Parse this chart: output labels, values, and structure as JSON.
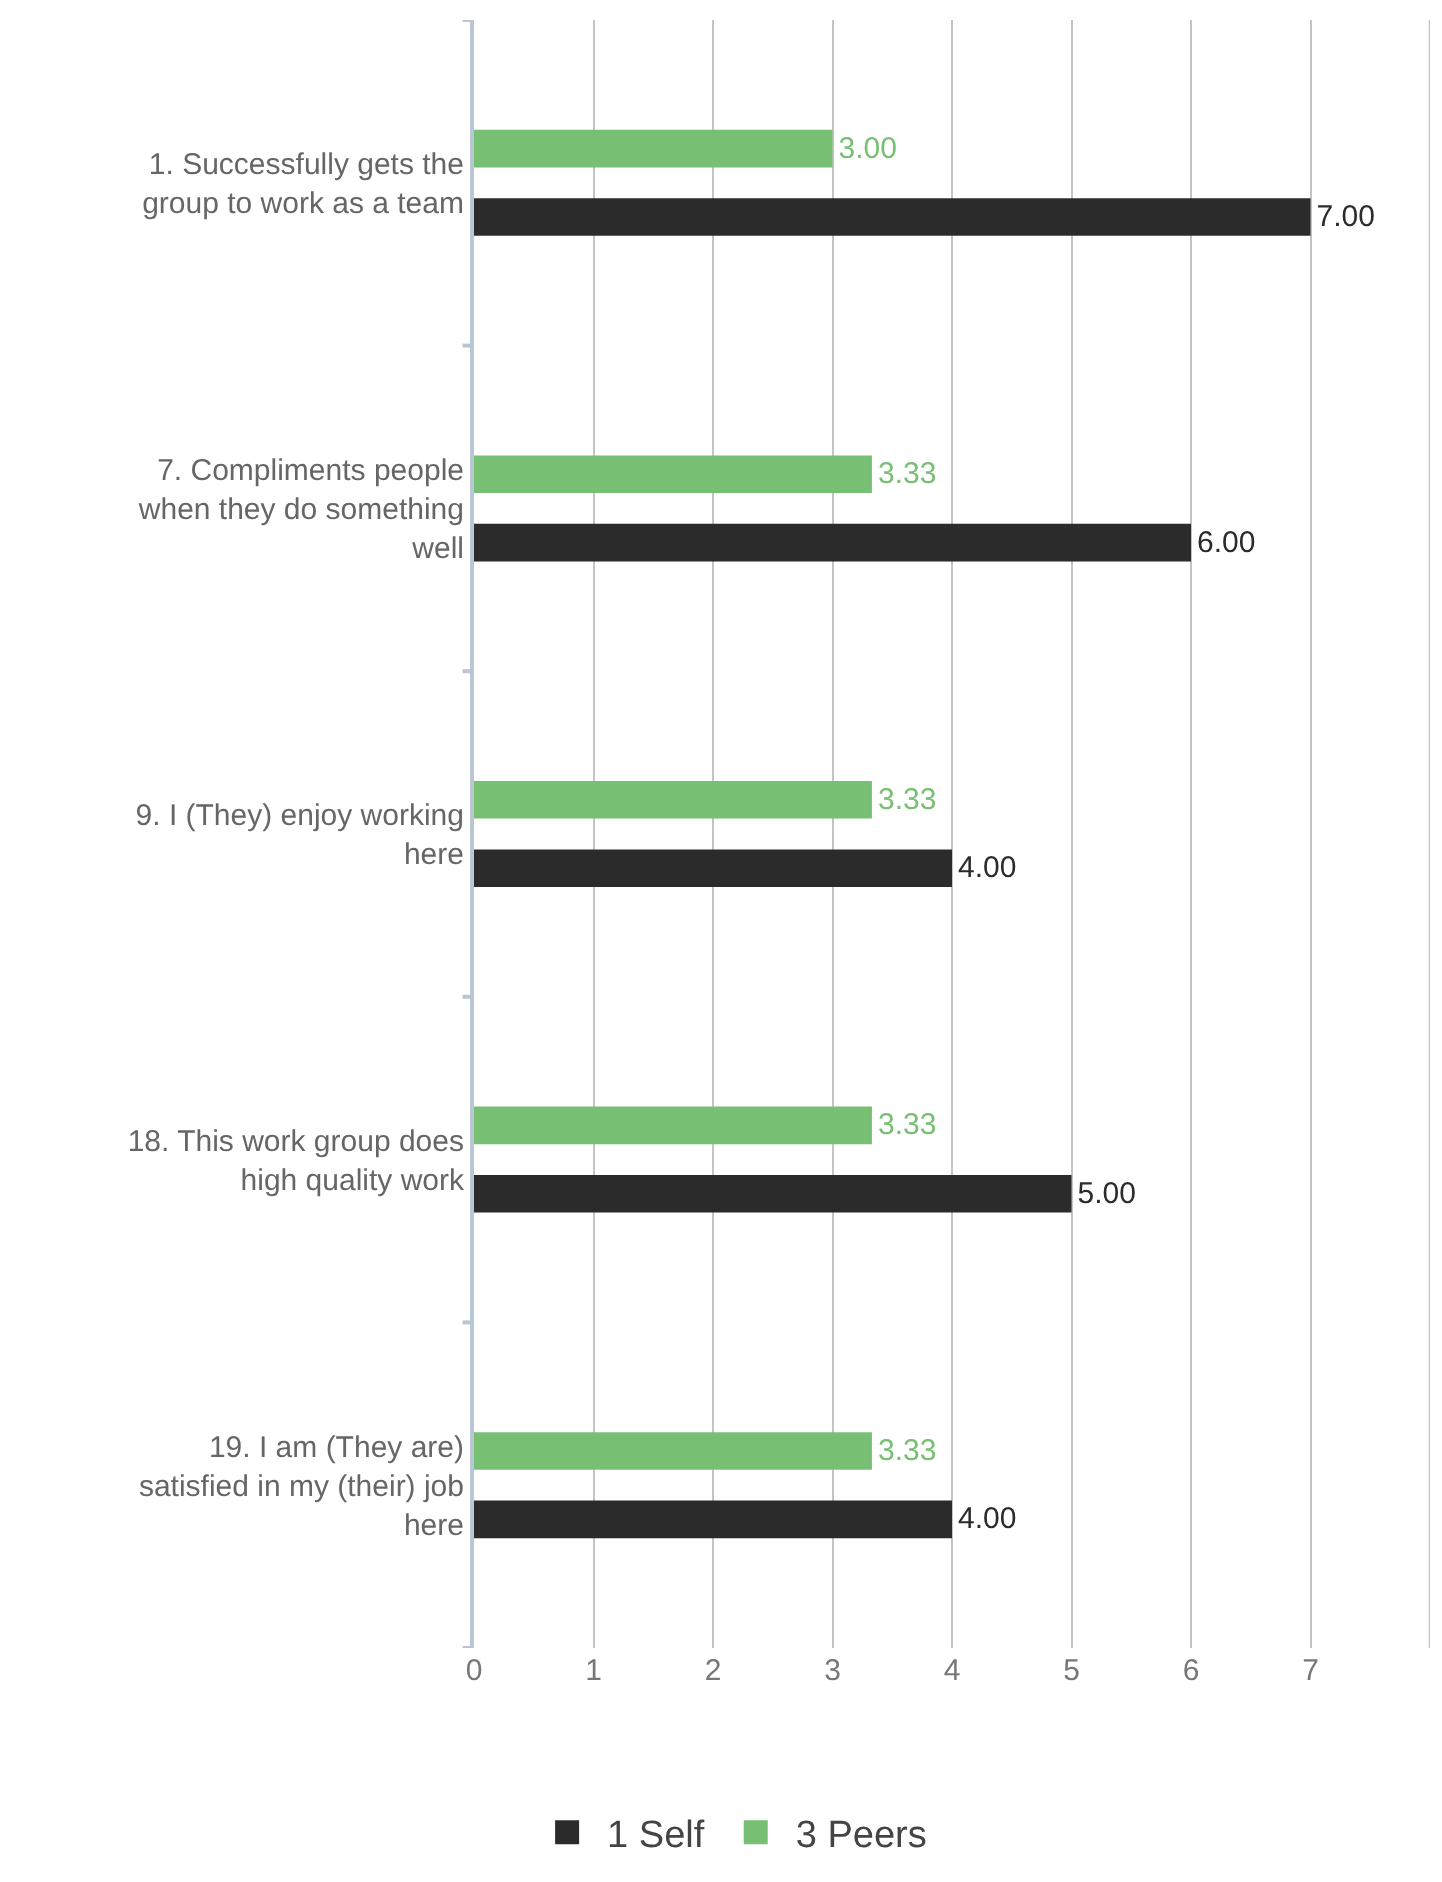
{
  "chart_data": {
    "type": "bar",
    "orientation": "horizontal",
    "categories": [
      "1. Successfully gets the\ngroup to work as a team",
      "7. Compliments people\nwhen they do something\nwell",
      "9. I (They) enjoy working\nhere",
      "18. This work group does\nhigh quality work",
      "19. I am (They are)\nsatisfied in my (their) job\nhere"
    ],
    "series": [
      {
        "name": "1 Self",
        "color": "#2b2b2b",
        "values": [
          7,
          6,
          4,
          5,
          4
        ],
        "value_labels": [
          "7.00",
          "6.00",
          "4.00",
          "5.00",
          "4.00"
        ]
      },
      {
        "name": "3 Peers",
        "color": "#77c073",
        "values": [
          3,
          3.33,
          3.33,
          3.33,
          3.33
        ],
        "value_labels": [
          "3.00",
          "3.33",
          "3.33",
          "3.33",
          "3.33"
        ]
      }
    ],
    "xlim": [
      0,
      8
    ],
    "xticks": [
      0,
      1,
      2,
      3,
      4,
      5,
      6,
      7
    ],
    "grid": "x",
    "legend": "bottom"
  }
}
